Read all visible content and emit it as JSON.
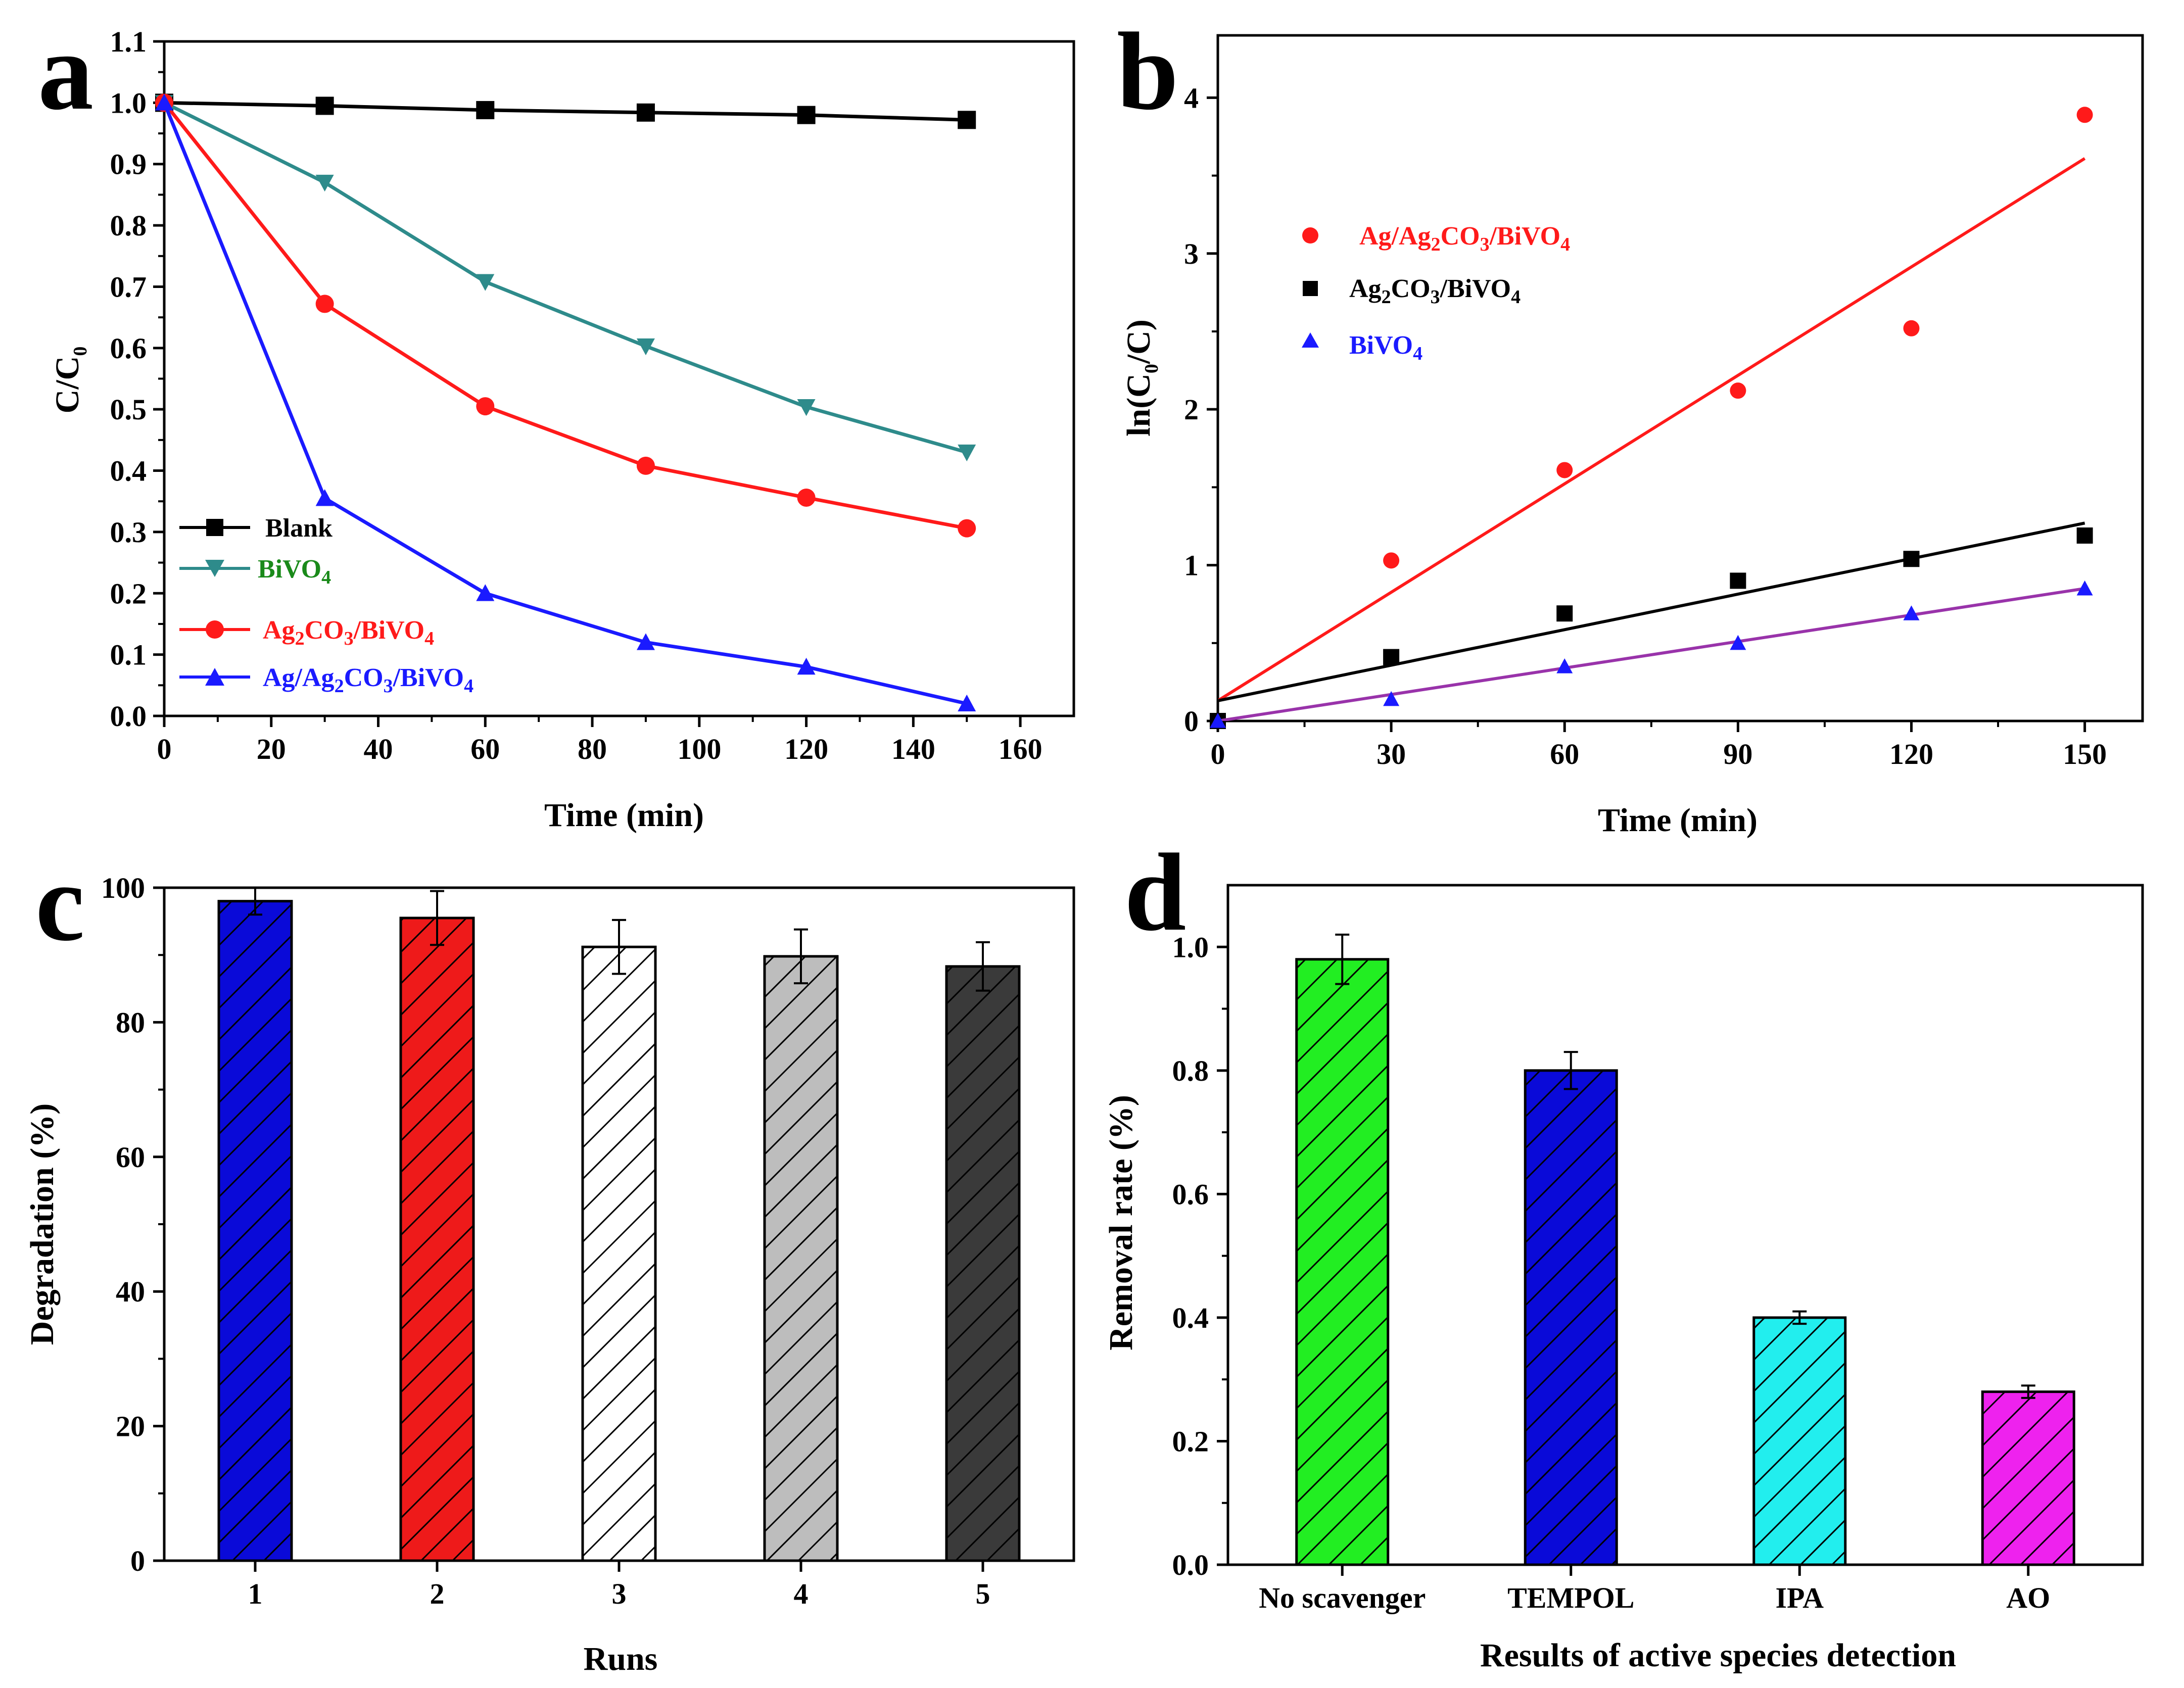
{
  "chart_data": [
    {
      "panel": "a",
      "type": "line",
      "xlabel": "Time (min)",
      "ylabel": "C/C0",
      "xlim": [
        0,
        170
      ],
      "ylim": [
        0,
        1.1
      ],
      "xticks": [
        "0",
        "20",
        "40",
        "60",
        "80",
        "100",
        "120",
        "140",
        "160"
      ],
      "yticks": [
        "0.0",
        "0.1",
        "0.2",
        "0.3",
        "0.4",
        "0.5",
        "0.6",
        "0.7",
        "0.8",
        "0.9",
        "1.0",
        "1.1"
      ],
      "x": [
        0,
        30,
        60,
        90,
        120,
        150
      ],
      "legend_position": "bottom-left",
      "series": [
        {
          "name": "Blank",
          "color": "#000000",
          "marker": "square",
          "label_color": "#000000",
          "values": [
            1.0,
            0.995,
            0.988,
            0.984,
            0.98,
            0.972
          ]
        },
        {
          "name": "BiVO4",
          "color": "#2e8b8b",
          "marker": "triangle-down",
          "label_color": "#1a8a1a",
          "values": [
            1.0,
            0.87,
            0.708,
            0.603,
            0.504,
            0.43
          ]
        },
        {
          "name": "Ag2CO3/BiVO4",
          "color": "#ff1a1a",
          "marker": "circle",
          "label_color": "#ff1a1a",
          "values": [
            1.0,
            0.672,
            0.505,
            0.408,
            0.356,
            0.306
          ]
        },
        {
          "name": "Ag/Ag2CO3/BiVO4",
          "color": "#1a1aff",
          "marker": "triangle-up",
          "label_color": "#1a1aff",
          "values": [
            1.0,
            0.355,
            0.2,
            0.12,
            0.08,
            0.02
          ]
        }
      ]
    },
    {
      "panel": "b",
      "type": "scatter",
      "xlabel": "Time (min)",
      "ylabel": "ln(C0/C)",
      "xlim": [
        0,
        160
      ],
      "ylim": [
        0,
        4.4
      ],
      "xticks": [
        "0",
        "30",
        "60",
        "90",
        "120",
        "150"
      ],
      "yticks": [
        "0",
        "1",
        "2",
        "3",
        "4"
      ],
      "x": [
        0,
        30,
        60,
        90,
        120,
        150
      ],
      "legend_position": "top-left",
      "series": [
        {
          "name": "Ag/Ag2CO3/BiVO4",
          "color": "#ff1a1a",
          "marker": "circle",
          "values": [
            0,
            1.03,
            1.61,
            2.12,
            2.52,
            3.89
          ],
          "fit": [
            0.13,
            3.61
          ]
        },
        {
          "name": "Ag2CO3/BiVO4",
          "color": "#000000",
          "marker": "square",
          "values": [
            0,
            0.41,
            0.69,
            0.9,
            1.04,
            1.19
          ],
          "fit": [
            0.13,
            1.27
          ]
        },
        {
          "name": "BiVO4",
          "color": "#1a1aff",
          "fitcolor": "#9933aa",
          "marker": "triangle-up",
          "values": [
            0,
            0.14,
            0.35,
            0.5,
            0.69,
            0.85
          ],
          "fit": [
            0,
            0.85
          ]
        }
      ]
    },
    {
      "panel": "c",
      "type": "bar",
      "xlabel": "Runs",
      "ylabel": "Degradation (%)",
      "ylim": [
        0,
        100
      ],
      "yticks": [
        "0",
        "20",
        "40",
        "60",
        "80",
        "100"
      ],
      "categories": [
        "1",
        "2",
        "3",
        "4",
        "5"
      ],
      "values": [
        98,
        95.5,
        91.2,
        89.8,
        88.3
      ],
      "errors": [
        2.0,
        4.0,
        4.0,
        4.0,
        3.6
      ],
      "colors": [
        "#0a0ad8",
        "#ee1a1a",
        "#ffffff",
        "#bdbdbd",
        "#3a3a3a"
      ]
    },
    {
      "panel": "d",
      "type": "bar",
      "xlabel": "Results of active species detection",
      "ylabel": "Removal rate (%)",
      "ylim": [
        0,
        1.1
      ],
      "yticks": [
        "0.0",
        "0.2",
        "0.4",
        "0.6",
        "0.8",
        "1.0"
      ],
      "categories": [
        "No scavenger",
        "TEMPOL",
        "IPA",
        "AO"
      ],
      "values": [
        0.98,
        0.8,
        0.4,
        0.28
      ],
      "errors": [
        0.04,
        0.03,
        0.01,
        0.01
      ],
      "colors": [
        "#22ee22",
        "#0a0ad8",
        "#22eeee",
        "#ee22ee"
      ]
    }
  ]
}
